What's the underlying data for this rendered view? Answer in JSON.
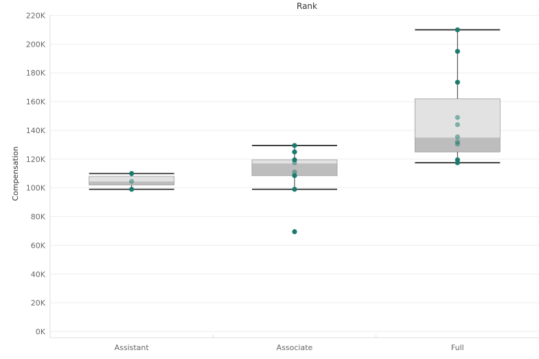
{
  "chart_data": {
    "type": "box",
    "title": "Rank",
    "ylabel": "Compensation",
    "ylim": [
      0,
      220000
    ],
    "yticks": [
      {
        "value": 0,
        "label": "0K"
      },
      {
        "value": 20000,
        "label": "20K"
      },
      {
        "value": 40000,
        "label": "40K"
      },
      {
        "value": 60000,
        "label": "60K"
      },
      {
        "value": 80000,
        "label": "80K"
      },
      {
        "value": 100000,
        "label": "100K"
      },
      {
        "value": 120000,
        "label": "120K"
      },
      {
        "value": 140000,
        "label": "140K"
      },
      {
        "value": 160000,
        "label": "160K"
      },
      {
        "value": 180000,
        "label": "180K"
      },
      {
        "value": 200000,
        "label": "200K"
      },
      {
        "value": 220000,
        "label": "220K"
      }
    ],
    "grid": true,
    "categories": [
      "Assistant",
      "Associate",
      "Full"
    ],
    "boxes": [
      {
        "category": "Assistant",
        "min": 99000,
        "q1": 102000,
        "median": 104500,
        "q3": 108000,
        "max": 110000
      },
      {
        "category": "Associate",
        "min": 99000,
        "q1": 108500,
        "median": 117000,
        "q3": 119500,
        "max": 129500
      },
      {
        "category": "Full",
        "min": 117500,
        "q1": 125000,
        "median": 135000,
        "q3": 162000,
        "max": 210000
      }
    ],
    "points": [
      {
        "category": "Assistant",
        "values": [
          110000,
          104500,
          99000
        ]
      },
      {
        "category": "Associate",
        "values": [
          129500,
          125000,
          119500,
          117500,
          111000,
          108500,
          99000,
          69500
        ]
      },
      {
        "category": "Full",
        "values": [
          210000,
          195000,
          173500,
          149000,
          144000,
          135500,
          132000,
          130500,
          119500,
          117500
        ]
      }
    ],
    "colors": {
      "point": "#1b7a6e",
      "box_upper": "#e2e2e2",
      "box_lower": "#bdbdbd",
      "whisker": "#333333",
      "grid": "#eeeeee",
      "axis_text": "#666666"
    }
  }
}
